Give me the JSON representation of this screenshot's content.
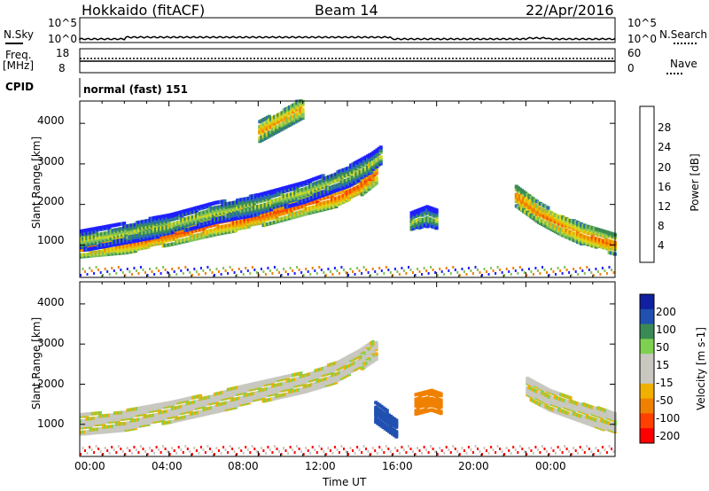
{
  "header": {
    "station": "Hokkaido (fitACF)",
    "beam": "Beam 14",
    "date": "22/Apr/2016"
  },
  "top_panels": {
    "nsky_label": "N.Sky",
    "nsky_ticks": [
      "10^5",
      "10^0"
    ],
    "nsearch_label": "N.Search",
    "nsearch_ticks": [
      "10^5",
      "10^0"
    ],
    "freq_label": "Freq.",
    "freq_unit": "[MHz]",
    "freq_ticks": [
      "18",
      "8"
    ],
    "nave_label": "Nave",
    "nave_ticks": [
      "60",
      "0"
    ],
    "cpid_label": "CPID",
    "cpid_value": "normal (fast) 151"
  },
  "colors": {
    "power": [
      "#1f1fff",
      "#2a6fb0",
      "#3a8a55",
      "#7fc25a",
      "#d8d820",
      "#f0b000",
      "#f08000",
      "#ff4000",
      "#ff0000"
    ],
    "velocity": [
      "#ff0000",
      "#ff4000",
      "#f08000",
      "#f0b000",
      "#c8c8c0",
      "#c8c8c0",
      "#7fd050",
      "#3a8a55",
      "#2050b0",
      "#1020a0"
    ]
  },
  "chart_data": [
    {
      "type": "heatmap",
      "panel": "power",
      "ylabel": "Slant Range [km]",
      "y_ticks": [
        "1000",
        "2000",
        "3000",
        "4000"
      ],
      "ylim": [
        200,
        4550
      ],
      "x_ticks": [
        "00:00",
        "04:00",
        "08:00",
        "12:00",
        "16:00",
        "20:00",
        "00:00"
      ],
      "xlim_hours": [
        0,
        24
      ],
      "colorbar": {
        "label": "Power [dB]",
        "ticks": [
          "4",
          "8",
          "12",
          "16",
          "20",
          "24",
          "28"
        ],
        "range": [
          0,
          30
        ]
      },
      "regions": [
        {
          "desc": "main echo band",
          "t": [
            0,
            2,
            4,
            6,
            8,
            10,
            11.5,
            12.5,
            13.3
          ],
          "range_km": [
            950,
            1050,
            1250,
            1500,
            1700,
            2000,
            2200,
            2450,
            2800
          ],
          "power_db": 24
        },
        {
          "desc": "upper band",
          "t": [
            0,
            2,
            4,
            6,
            8,
            10,
            12,
            13,
            13.5
          ],
          "range_km": [
            1100,
            1300,
            1500,
            1800,
            2000,
            2300,
            2700,
            3000,
            3200
          ],
          "power_db": 14
        },
        {
          "desc": "late evening band",
          "t": [
            19.5,
            20.5,
            21.5,
            22.5,
            24
          ],
          "range_km": [
            2200,
            1800,
            1500,
            1250,
            1000
          ],
          "power_db": 22
        },
        {
          "desc": "high-range echo",
          "t": [
            8,
            9,
            10
          ],
          "range_km": [
            3800,
            4100,
            4400
          ],
          "power_db": 20
        },
        {
          "desc": "afternoon patch",
          "t": [
            14.8,
            15.5,
            16
          ],
          "range_km": [
            1550,
            1700,
            1600
          ],
          "power_db": 13
        }
      ]
    },
    {
      "type": "heatmap",
      "panel": "velocity",
      "ylabel": "Slant Range [km]",
      "y_ticks": [
        "1000",
        "2000",
        "3000",
        "4000"
      ],
      "ylim": [
        200,
        4550
      ],
      "x_ticks": [
        "00:00",
        "04:00",
        "08:00",
        "12:00",
        "16:00",
        "20:00",
        "00:00"
      ],
      "xlim_hours": [
        0,
        24
      ],
      "xlabel": "Time UT",
      "colorbar": {
        "label": "Velocity [m s-1]",
        "ticks": [
          "200",
          "100",
          "50",
          "15",
          "-15",
          "-50",
          "-100",
          "-200"
        ],
        "range": [
          -250,
          250
        ]
      },
      "regions": [
        {
          "desc": "main echo band",
          "t": [
            0,
            2,
            4,
            6,
            8,
            10,
            11.5,
            12.5,
            13.3
          ],
          "range_km": [
            1000,
            1100,
            1300,
            1550,
            1800,
            2050,
            2300,
            2600,
            2900
          ],
          "velocity_ms": 0
        },
        {
          "desc": "negative patch",
          "t": [
            15,
            15.7,
            16.2
          ],
          "range_km": [
            1500,
            1600,
            1500
          ],
          "velocity_ms": -70
        },
        {
          "desc": "positive patch",
          "t": [
            13.2,
            13.7,
            14.2
          ],
          "range_km": [
            1300,
            1100,
            900
          ],
          "velocity_ms": 120
        },
        {
          "desc": "late evening band",
          "t": [
            20,
            21,
            22,
            23,
            24
          ],
          "range_km": [
            1900,
            1600,
            1400,
            1200,
            1000
          ],
          "velocity_ms": 0
        }
      ]
    }
  ]
}
